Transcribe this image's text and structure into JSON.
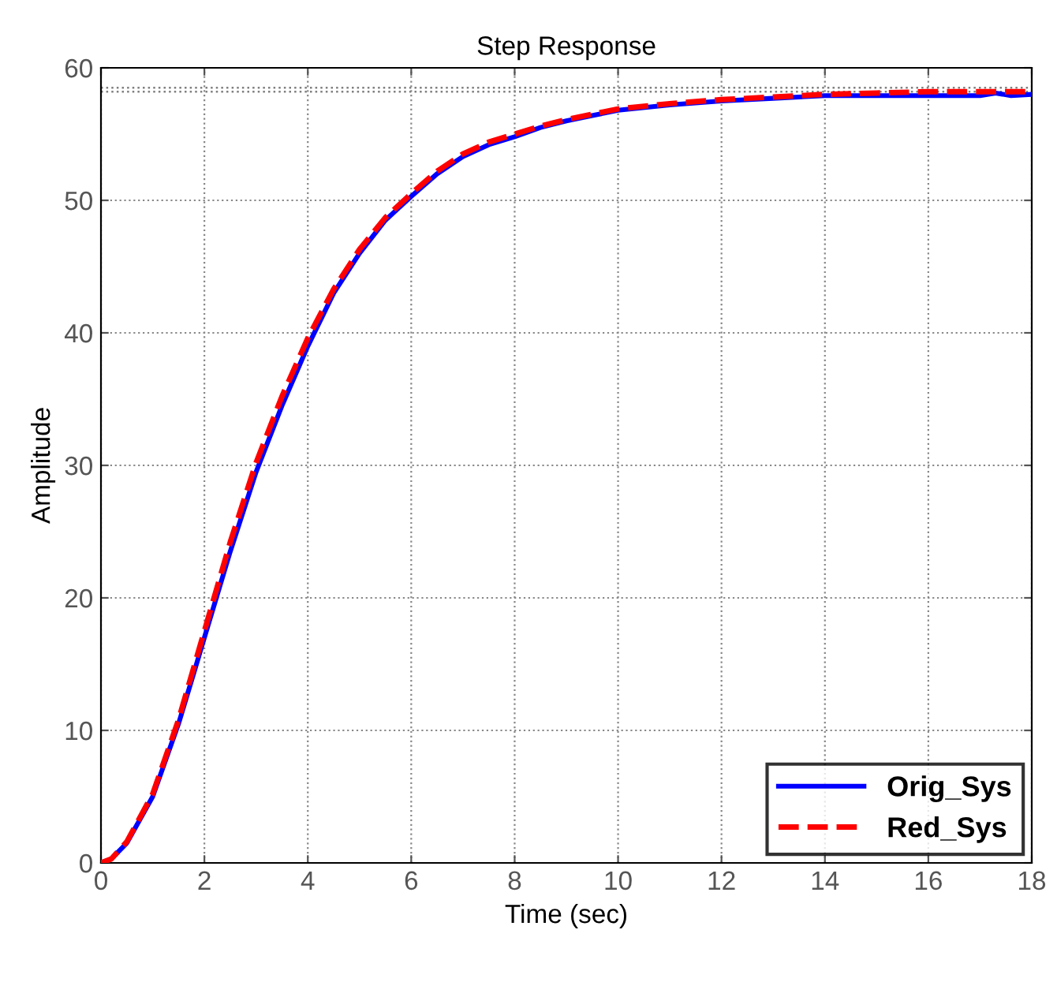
{
  "chart_data": {
    "type": "line",
    "title": "Step Response",
    "xlabel": "Time (sec)",
    "ylabel": "Amplitude",
    "x": [
      0,
      0.2,
      0.5,
      1,
      1.5,
      2,
      2.5,
      3,
      3.5,
      4,
      4.5,
      5,
      5.5,
      6,
      6.5,
      7,
      7.5,
      8,
      8.5,
      9,
      9.5,
      10,
      11,
      12,
      13,
      14,
      15,
      16,
      17,
      17.3,
      17.6,
      18
    ],
    "series": [
      {
        "name": "Orig_Sys",
        "color": "#0000ff",
        "line_style": "solid",
        "values": [
          0,
          0.3,
          1.5,
          5,
          10.5,
          17,
          23.5,
          29.5,
          34.5,
          39,
          43,
          46,
          48.5,
          50.3,
          52,
          53.3,
          54.2,
          54.8,
          55.5,
          56,
          56.4,
          56.8,
          57.2,
          57.5,
          57.7,
          57.9,
          57.9,
          57.9,
          57.9,
          58.1,
          57.9,
          58
        ]
      },
      {
        "name": "Red_Sys",
        "color": "#ff0000",
        "line_style": "dashed",
        "values": [
          0,
          0.3,
          1.6,
          5.2,
          10.8,
          17.5,
          24.2,
          30.2,
          35.2,
          39.6,
          43.3,
          46.3,
          48.7,
          50.5,
          52.2,
          53.5,
          54.4,
          55,
          55.6,
          56.1,
          56.5,
          56.9,
          57.3,
          57.6,
          57.8,
          58,
          58.1,
          58.2,
          58.2,
          58.2,
          58.2,
          58.2
        ]
      }
    ],
    "xlim": [
      0,
      18
    ],
    "ylim": [
      0,
      60
    ],
    "xticks": [
      0,
      2,
      4,
      6,
      8,
      10,
      12,
      14,
      16,
      18
    ],
    "yticks": [
      0,
      10,
      20,
      30,
      40,
      50,
      60
    ],
    "ref_lines": [
      {
        "axis": "y",
        "value": 58.2,
        "label": null,
        "color": "#808080",
        "line_style": "dotted"
      },
      {
        "axis": "y",
        "value": 58.5,
        "label": null,
        "color": "#808080",
        "line_style": "dotted"
      }
    ],
    "grid": true,
    "legend": "bottom right",
    "marker": "none"
  }
}
